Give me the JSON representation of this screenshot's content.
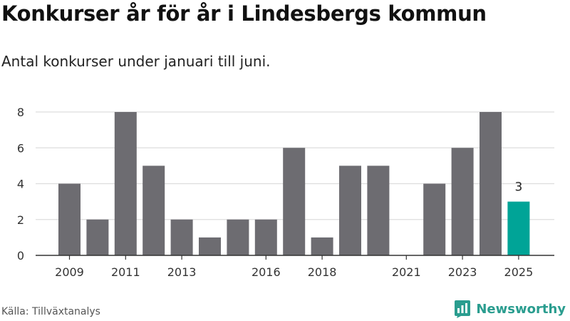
{
  "header": {
    "title": "Konkurser år för år i Lindesbergs kommun",
    "subtitle": "Antal konkurser under januari till juni."
  },
  "footer": {
    "source": "Källa: Tillväxtanalys",
    "brand": "Newsworthy",
    "brand_icon": "newsworthy-logo-icon",
    "brand_color": "#2a9d8f"
  },
  "chart_data": {
    "type": "bar",
    "title": "Konkurser år för år i Lindesbergs kommun",
    "subtitle": "Antal konkurser under januari till juni.",
    "categories": [
      "2009",
      "2010",
      "2011",
      "2012",
      "2013",
      "2014",
      "2015",
      "2016",
      "2017",
      "2018",
      "2019",
      "2020",
      "2021",
      "2022",
      "2023",
      "2024",
      "2025"
    ],
    "values": [
      4,
      2,
      8,
      5,
      2,
      1,
      2,
      2,
      6,
      1,
      5,
      5,
      0,
      4,
      6,
      8,
      3
    ],
    "x_tick_labels": [
      "2009",
      "2011",
      "2013",
      "2016",
      "2018",
      "2021",
      "2023",
      "2025"
    ],
    "y_ticks": [
      0,
      2,
      4,
      6,
      8
    ],
    "ylim": [
      0,
      8
    ],
    "xlabel": "",
    "ylabel": "",
    "grid": true,
    "highlight": {
      "category": "2025",
      "label": "3"
    },
    "colors": {
      "bar": "#6d6c71",
      "highlight": "#00a497",
      "grid": "#dddddd",
      "axis": "#333333"
    }
  }
}
